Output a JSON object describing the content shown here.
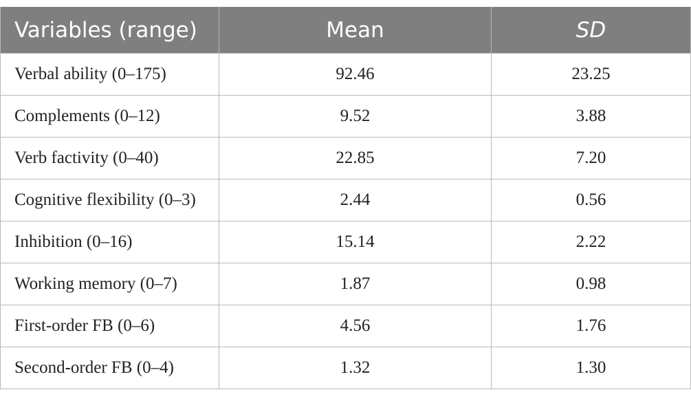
{
  "table": {
    "headers": [
      "Variables (range)",
      "Mean",
      "SD"
    ],
    "rows": [
      [
        "Verbal ability (0–175)",
        "92.46",
        "23.25"
      ],
      [
        "Complements (0–12)",
        "9.52",
        "3.88"
      ],
      [
        "Verb factivity (0–40)",
        "22.85",
        "7.20"
      ],
      [
        "Cognitive flexibility (0–3)",
        "2.44",
        "0.56"
      ],
      [
        "Inhibition (0–16)",
        "15.14",
        "2.22"
      ],
      [
        "Working memory (0–7)",
        "1.87",
        "0.98"
      ],
      [
        "First-order FB (0–6)",
        "4.56",
        "1.76"
      ],
      [
        "Second-order FB (0–4)",
        "1.32",
        "1.30"
      ]
    ]
  },
  "colors": {
    "header_bg": "#7f7f7f",
    "header_text": "#ffffff",
    "border": "#b9b9b9",
    "body_text": "#222222"
  }
}
